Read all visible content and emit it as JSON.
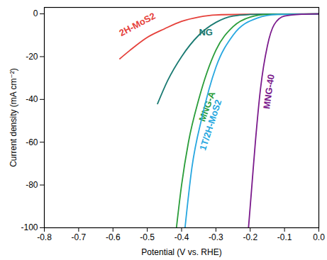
{
  "chart_data": {
    "type": "line",
    "x_label": "Potential (V vs. RHE)",
    "y_label": "Current density (mA cm⁻²)",
    "xlim": [
      -0.8,
      0.0
    ],
    "ylim": [
      -100,
      3
    ],
    "xticks": [
      -0.8,
      -0.7,
      -0.6,
      -0.5,
      -0.4,
      -0.3,
      -0.2,
      -0.1,
      {
        "value": 0,
        "label": "0.0"
      }
    ],
    "yticks": [
      0,
      -20,
      -40,
      -60,
      -80,
      -100
    ],
    "legend": "inline",
    "series": [
      {
        "name": "2H-MoS2",
        "color": "#e5403a",
        "x": [
          0,
          -0.2,
          -0.3,
          -0.35,
          -0.4,
          -0.45,
          -0.5,
          -0.55,
          -0.58
        ],
        "values": [
          0,
          -0.2,
          -0.5,
          -1.5,
          -3.5,
          -7,
          -11,
          -17,
          -21
        ]
      },
      {
        "name": "NG",
        "color": "#1a7a72",
        "x": [
          0,
          -0.15,
          -0.2,
          -0.25,
          -0.3,
          -0.35,
          -0.4,
          -0.44,
          -0.47
        ],
        "values": [
          0,
          -0.1,
          -0.3,
          -1,
          -4,
          -10,
          -20,
          -31,
          -42
        ]
      },
      {
        "name": "MNG-A",
        "color": "#2a9d3a",
        "x": [
          0,
          -0.15,
          -0.2,
          -0.25,
          -0.3,
          -0.35,
          -0.38,
          -0.4,
          -0.415
        ],
        "values": [
          0,
          -0.3,
          -1.5,
          -6,
          -17,
          -40,
          -60,
          -80,
          -100
        ]
      },
      {
        "name": "1T/2H-MoS2",
        "color": "#27a7e0",
        "x": [
          0,
          -0.12,
          -0.18,
          -0.25,
          -0.3,
          -0.34,
          -0.37,
          -0.39
        ],
        "values": [
          0,
          -0.3,
          -2,
          -10,
          -25,
          -48,
          -72,
          -100
        ]
      },
      {
        "name": "MNG-40",
        "color": "#7b1a8c",
        "x": [
          0,
          -0.05,
          -0.1,
          -0.13,
          -0.15,
          -0.17,
          -0.185,
          -0.195,
          -0.205
        ],
        "values": [
          0,
          -0.2,
          -1,
          -5,
          -15,
          -35,
          -60,
          -80,
          -100
        ]
      }
    ]
  }
}
